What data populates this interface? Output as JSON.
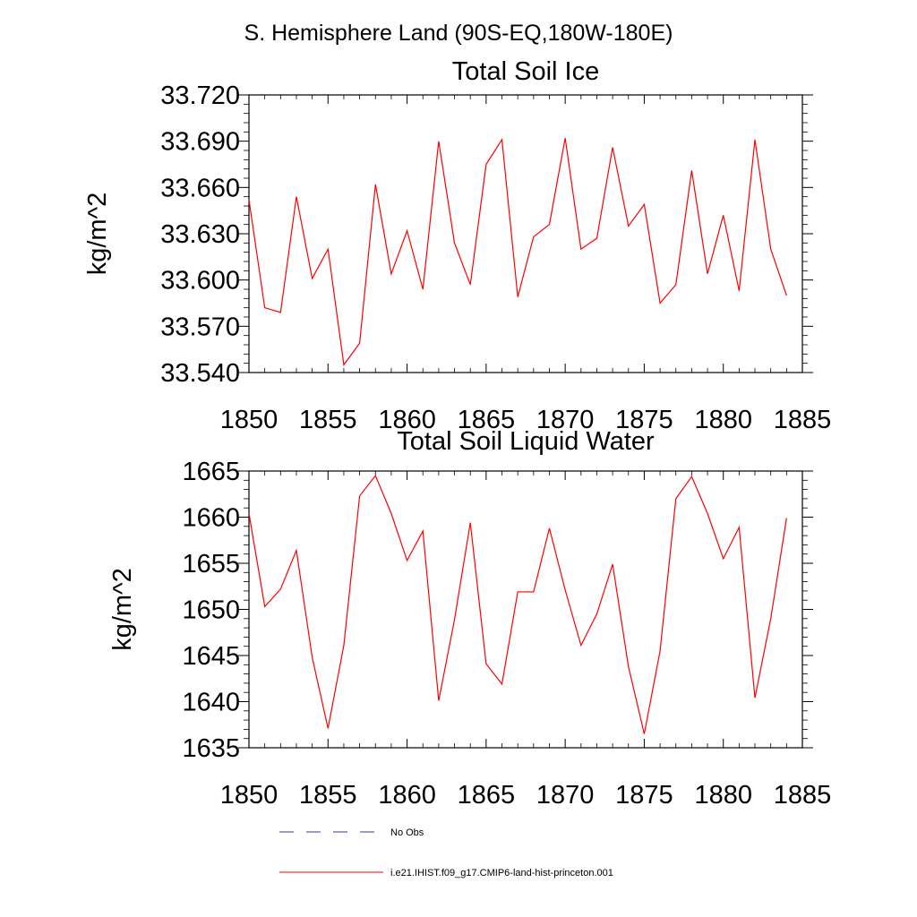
{
  "figure": {
    "main_title": "S. Hemisphere Land (90S-EQ,180W-180E)"
  },
  "legend": {
    "entries": [
      {
        "label": "No Obs",
        "color": "#2f3b8f",
        "style": "dashed"
      },
      {
        "label": "i.e21.IHIST.f09_g17.CMIP6-land-hist-princeton.001",
        "color": "#ff0000",
        "style": "solid"
      }
    ]
  },
  "chart_data": [
    {
      "type": "line",
      "title": "Total Soil Ice",
      "xlabel": "",
      "ylabel": "kg/m^2",
      "xlim": [
        1850,
        1885
      ],
      "ylim": [
        33.54,
        33.72
      ],
      "xticks": [
        "1850",
        "1855",
        "1860",
        "1865",
        "1870",
        "1875",
        "1880",
        "1885"
      ],
      "yticks": [
        "33.540",
        "33.570",
        "33.600",
        "33.630",
        "33.660",
        "33.690",
        "33.720"
      ],
      "grid": false,
      "series": [
        {
          "color": "#ff0000",
          "x": [
            1850,
            1851,
            1852,
            1853,
            1854,
            1855,
            1856,
            1857,
            1858,
            1859,
            1860,
            1861,
            1862,
            1863,
            1864,
            1865,
            1866,
            1867,
            1868,
            1869,
            1870,
            1871,
            1872,
            1873,
            1874,
            1875,
            1876,
            1877,
            1878,
            1879,
            1880,
            1881,
            1882,
            1883,
            1884
          ],
          "values": [
            33.652,
            33.582,
            33.579,
            33.654,
            33.601,
            33.62,
            33.545,
            33.559,
            33.662,
            33.604,
            33.632,
            33.594,
            33.69,
            33.624,
            33.597,
            33.675,
            33.691,
            33.589,
            33.628,
            33.636,
            33.692,
            33.62,
            33.627,
            33.686,
            33.635,
            33.649,
            33.585,
            33.597,
            33.671,
            33.604,
            33.642,
            33.593,
            33.691,
            33.62,
            33.59
          ]
        }
      ]
    },
    {
      "type": "line",
      "title": "Total Soil Liquid Water",
      "xlabel": "",
      "ylabel": "kg/m^2",
      "xlim": [
        1850,
        1885
      ],
      "ylim": [
        1635,
        1665
      ],
      "xticks": [
        "1850",
        "1855",
        "1860",
        "1865",
        "1870",
        "1875",
        "1880",
        "1885"
      ],
      "yticks": [
        "1635",
        "1640",
        "1645",
        "1650",
        "1655",
        "1660",
        "1665"
      ],
      "grid": false,
      "series": [
        {
          "color": "#ff0000",
          "x": [
            1850,
            1851,
            1852,
            1853,
            1854,
            1855,
            1856,
            1857,
            1858,
            1859,
            1860,
            1861,
            1862,
            1863,
            1864,
            1865,
            1866,
            1867,
            1868,
            1869,
            1870,
            1871,
            1872,
            1873,
            1874,
            1875,
            1876,
            1877,
            1878,
            1879,
            1880,
            1881,
            1882,
            1883,
            1884
          ],
          "values": [
            1660.4,
            1650.3,
            1652.2,
            1656.4,
            1644.8,
            1637.1,
            1646.1,
            1662.3,
            1664.5,
            1660.4,
            1655.3,
            1658.5,
            1640.1,
            1648.9,
            1659.4,
            1644.1,
            1641.9,
            1651.9,
            1651.9,
            1658.8,
            1652.1,
            1646.1,
            1649.5,
            1654.9,
            1643.8,
            1636.5,
            1645.5,
            1662.0,
            1664.4,
            1660.4,
            1655.5,
            1658.9,
            1640.4,
            1649.0,
            1659.9
          ]
        }
      ]
    }
  ]
}
